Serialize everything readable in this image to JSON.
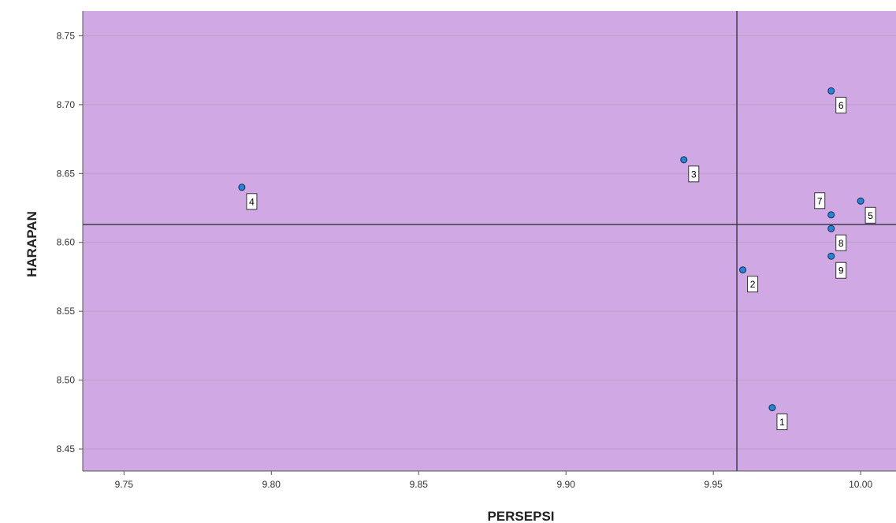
{
  "chart_data": {
    "type": "scatter",
    "xlabel": "PERSEPSI",
    "ylabel": "HARAPAN",
    "xlim": [
      9.736,
      10.012
    ],
    "ylim": [
      8.434,
      8.768
    ],
    "x_ticks": [
      "9.75",
      "9.80",
      "9.85",
      "9.90",
      "9.95",
      "10.00"
    ],
    "y_ticks": [
      "8.45",
      "8.50",
      "8.55",
      "8.60",
      "8.65",
      "8.70",
      "8.75"
    ],
    "grid": "horizontal",
    "reference_lines": {
      "x": 9.958,
      "y": 8.613
    },
    "colors": {
      "plot_background": "#d0a8e4",
      "marker_fill": "#1f86d9",
      "marker_stroke": "#1a2a4a",
      "grid": "#b9a0c8",
      "reference": "#3a3a4a"
    },
    "points": [
      {
        "label": "1",
        "x": 9.97,
        "y": 8.48,
        "label_pos": "below-right"
      },
      {
        "label": "2",
        "x": 9.96,
        "y": 8.58,
        "label_pos": "below-right"
      },
      {
        "label": "3",
        "x": 9.94,
        "y": 8.66,
        "label_pos": "below-right"
      },
      {
        "label": "4",
        "x": 9.79,
        "y": 8.64,
        "label_pos": "below-right"
      },
      {
        "label": "5",
        "x": 10.0,
        "y": 8.63,
        "label_pos": "below-right"
      },
      {
        "label": "6",
        "x": 9.99,
        "y": 8.71,
        "label_pos": "below-right"
      },
      {
        "label": "7",
        "x": 9.99,
        "y": 8.62,
        "label_pos": "above-left"
      },
      {
        "label": "8",
        "x": 9.99,
        "y": 8.61,
        "label_pos": "below-right"
      },
      {
        "label": "9",
        "x": 9.99,
        "y": 8.59,
        "label_pos": "below-right"
      }
    ]
  }
}
